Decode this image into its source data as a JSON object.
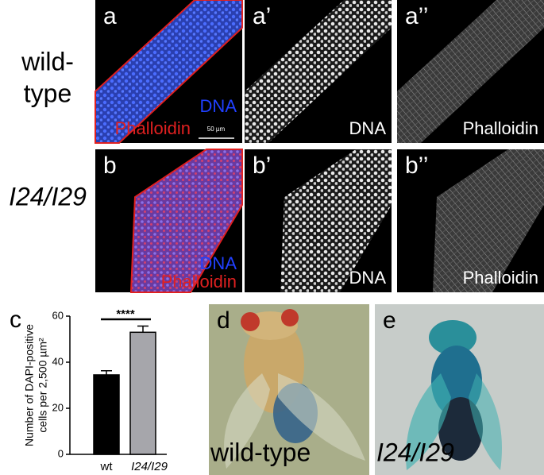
{
  "row_labels": [
    [
      "wild-",
      "type"
    ],
    [
      "I24/I29"
    ]
  ],
  "panels": [
    {
      "letter": "a",
      "labels": [
        "DNA",
        "Phalloidin"
      ],
      "scale_bar": "50 µm"
    },
    {
      "letter": "a’",
      "labels": [
        "DNA"
      ]
    },
    {
      "letter": "a’’",
      "labels": [
        "Phalloidin"
      ]
    },
    {
      "letter": "b",
      "labels": [
        "DNA",
        "Phalloidin"
      ]
    },
    {
      "letter": "b’",
      "labels": [
        "DNA"
      ]
    },
    {
      "letter": "b’’",
      "labels": [
        "Phalloidin"
      ]
    }
  ],
  "chart_data": {
    "type": "bar",
    "letter": "c",
    "ylabel_lines": [
      "Number of DAPI-positive",
      "cells per 2,500 µm²"
    ],
    "categories": [
      "wt",
      "I24/I29"
    ],
    "values": [
      34.5,
      53
    ],
    "errors": [
      1.8,
      2.7
    ],
    "colors": [
      "#000000",
      "#a6a6ab"
    ],
    "ylim": [
      0,
      60
    ],
    "yticks": [
      0,
      20,
      40,
      60
    ],
    "significance": "****"
  },
  "photos": [
    {
      "letter": "d",
      "label": "wild-type"
    },
    {
      "letter": "e",
      "label": "I24/I29"
    }
  ]
}
